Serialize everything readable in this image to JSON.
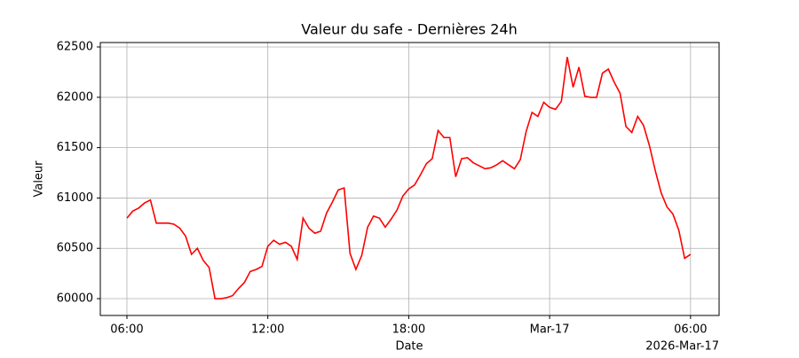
{
  "chart_data": {
    "type": "line",
    "title": "Valeur du safe - Dernières 24h",
    "x_label": "Date",
    "y_label": "Valeur",
    "x_offset_label": "2026-Mar-17",
    "x": [
      "2026-03-16T06:00",
      "2026-03-16T06:15",
      "2026-03-16T06:30",
      "2026-03-16T06:45",
      "2026-03-16T07:00",
      "2026-03-16T07:15",
      "2026-03-16T07:30",
      "2026-03-16T07:45",
      "2026-03-16T08:00",
      "2026-03-16T08:15",
      "2026-03-16T08:30",
      "2026-03-16T08:45",
      "2026-03-16T09:00",
      "2026-03-16T09:15",
      "2026-03-16T09:30",
      "2026-03-16T09:45",
      "2026-03-16T10:00",
      "2026-03-16T10:15",
      "2026-03-16T10:30",
      "2026-03-16T10:45",
      "2026-03-16T11:00",
      "2026-03-16T11:15",
      "2026-03-16T11:30",
      "2026-03-16T11:45",
      "2026-03-16T12:00",
      "2026-03-16T12:15",
      "2026-03-16T12:30",
      "2026-03-16T12:45",
      "2026-03-16T13:00",
      "2026-03-16T13:15",
      "2026-03-16T13:30",
      "2026-03-16T13:45",
      "2026-03-16T14:00",
      "2026-03-16T14:15",
      "2026-03-16T14:30",
      "2026-03-16T14:45",
      "2026-03-16T15:00",
      "2026-03-16T15:15",
      "2026-03-16T15:30",
      "2026-03-16T15:45",
      "2026-03-16T16:00",
      "2026-03-16T16:15",
      "2026-03-16T16:30",
      "2026-03-16T16:45",
      "2026-03-16T17:00",
      "2026-03-16T17:15",
      "2026-03-16T17:30",
      "2026-03-16T17:45",
      "2026-03-16T18:00",
      "2026-03-16T18:15",
      "2026-03-16T18:30",
      "2026-03-16T18:45",
      "2026-03-16T19:00",
      "2026-03-16T19:15",
      "2026-03-16T19:30",
      "2026-03-16T19:45",
      "2026-03-16T20:00",
      "2026-03-16T20:15",
      "2026-03-16T20:30",
      "2026-03-16T20:45",
      "2026-03-16T21:00",
      "2026-03-16T21:15",
      "2026-03-16T21:30",
      "2026-03-16T21:45",
      "2026-03-16T22:00",
      "2026-03-16T22:15",
      "2026-03-16T22:30",
      "2026-03-16T22:45",
      "2026-03-16T23:00",
      "2026-03-16T23:15",
      "2026-03-16T23:30",
      "2026-03-16T23:45",
      "2026-03-17T00:00",
      "2026-03-17T00:15",
      "2026-03-17T00:30",
      "2026-03-17T00:45",
      "2026-03-17T01:00",
      "2026-03-17T01:15",
      "2026-03-17T01:30",
      "2026-03-17T01:45",
      "2026-03-17T02:00",
      "2026-03-17T02:15",
      "2026-03-17T02:30",
      "2026-03-17T02:45",
      "2026-03-17T03:00",
      "2026-03-17T03:15",
      "2026-03-17T03:30",
      "2026-03-17T03:45",
      "2026-03-17T04:00",
      "2026-03-17T04:15",
      "2026-03-17T04:30",
      "2026-03-17T04:45",
      "2026-03-17T05:00",
      "2026-03-17T05:15",
      "2026-03-17T05:30",
      "2026-03-17T05:45",
      "2026-03-17T06:00"
    ],
    "series": [
      {
        "name": "Valeur",
        "color": "#ff0000",
        "values": [
          60800,
          60870,
          60900,
          60950,
          60980,
          60750,
          60750,
          60750,
          60740,
          60700,
          60620,
          60440,
          60500,
          60380,
          60310,
          60000,
          60000,
          60010,
          60030,
          60100,
          60160,
          60270,
          60290,
          60320,
          60520,
          60580,
          60540,
          60560,
          60520,
          60390,
          60800,
          60700,
          60650,
          60670,
          60850,
          60960,
          61080,
          61100,
          60450,
          60290,
          60430,
          60710,
          60820,
          60800,
          60710,
          60790,
          60880,
          61020,
          61090,
          61130,
          61230,
          61340,
          61390,
          61670,
          61600,
          61600,
          61210,
          61390,
          61400,
          61350,
          61320,
          61290,
          61300,
          61330,
          61370,
          61330,
          61290,
          61380,
          61660,
          61850,
          61810,
          61950,
          61900,
          61880,
          61960,
          62400,
          62100,
          62300,
          62010,
          62000,
          62000,
          62240,
          62280,
          62150,
          62040,
          61710,
          61650,
          61810,
          61720,
          61520,
          61270,
          61050,
          60910,
          60840,
          60680,
          60400,
          60440
        ]
      }
    ],
    "xlim": [
      "2026-03-16T04:52",
      "2026-03-17T07:13"
    ],
    "xticks": [
      {
        "value": "2026-03-16T06:00",
        "label": "06:00"
      },
      {
        "value": "2026-03-16T12:00",
        "label": "12:00"
      },
      {
        "value": "2026-03-16T18:00",
        "label": "18:00"
      },
      {
        "value": "2026-03-17T00:00",
        "label": "Mar-17"
      },
      {
        "value": "2026-03-17T06:00",
        "label": "06:00"
      }
    ],
    "ylim": [
      59833,
      62544
    ],
    "yticks": [
      60000,
      60500,
      61000,
      61500,
      62000,
      62500
    ],
    "grid": true
  }
}
